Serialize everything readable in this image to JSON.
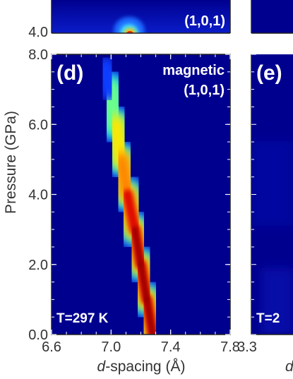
{
  "chart_data": [
    {
      "type": "heatmap",
      "panel": "(d)",
      "title": "",
      "annotation_lines": [
        "magnetic",
        "(1,0,1)"
      ],
      "temperature_label": "T=297 K",
      "xlabel_italic": "d",
      "xlabel_rest": "-spacing (Å)",
      "ylabel": "Pressure (GPa)",
      "xlim": [
        6.6,
        7.8
      ],
      "ylim": [
        0.0,
        8.0
      ],
      "xticks": [
        "6.6",
        "7.0",
        "7.4",
        "7.8"
      ],
      "yticks": [
        "0.0",
        "2.0",
        "4.0",
        "6.0",
        "8.0"
      ],
      "colormap": "jet",
      "ridge": {
        "pressure_GPa": [
          0.0,
          1.0,
          2.0,
          3.0,
          4.0,
          5.0,
          6.0,
          7.0
        ],
        "d_spacing_A": [
          7.28,
          7.24,
          7.2,
          7.16,
          7.11,
          7.07,
          7.03,
          6.99
        ],
        "relative_intensity": [
          1.0,
          1.0,
          0.95,
          0.85,
          0.72,
          0.55,
          0.38,
          0.2
        ]
      }
    },
    {
      "type": "heatmap",
      "panel": "(e)",
      "temperature_label": "T=2",
      "xlabel_italic": "d",
      "xticks": [
        "3.3"
      ],
      "partial": true
    },
    {
      "type": "heatmap",
      "panel": "above (partial)",
      "annotation": "(1,0,1)",
      "yticks": [
        "4.0"
      ],
      "partial": true
    }
  ],
  "colors": {
    "background": "#00008f",
    "axis_text": "#333333",
    "frame": "#222222",
    "overlay_text": "#ffffff"
  }
}
